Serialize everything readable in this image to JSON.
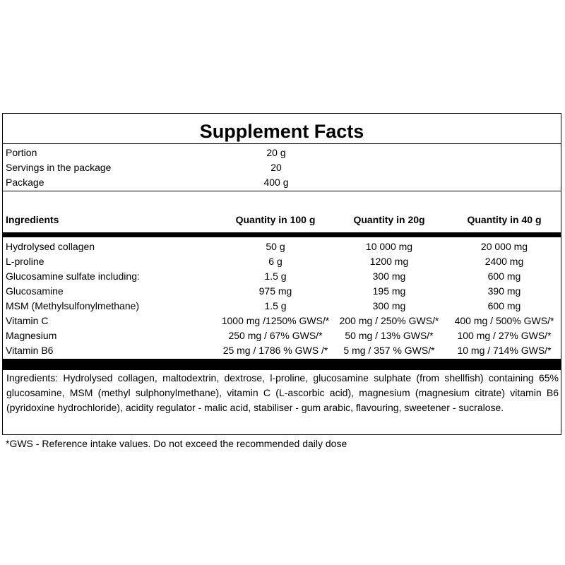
{
  "title": "Supplement Facts",
  "serving_info": [
    {
      "label": "Portion",
      "value": "20 g"
    },
    {
      "label": "Servings in the package",
      "value": "20"
    },
    {
      "label": "Package",
      "value": "400 g"
    }
  ],
  "table": {
    "headers": [
      "Ingredients",
      "Quantity in 100 g",
      "Quantity in 20g",
      "Quantity in 40 g"
    ],
    "rows": [
      [
        "Hydrolysed collagen",
        "50 g",
        "10 000 mg",
        "20 000 mg"
      ],
      [
        "L-proline",
        "6 g",
        "1200 mg",
        "2400 mg"
      ],
      [
        "Glucosamine sulfate including:",
        "1.5 g",
        "300 mg",
        "600 mg"
      ],
      [
        "Glucosamine",
        "975 mg",
        "195 mg",
        "390 mg"
      ],
      [
        "MSM (Methylsulfonylmethane)",
        "1.5 g",
        "300 mg",
        "600 mg"
      ],
      [
        "Vitamin C",
        "1000 mg /1250% GWS/*",
        "200 mg / 250% GWS/*",
        "400 mg / 500% GWS/*"
      ],
      [
        "Magnesium",
        "250 mg / 67% GWS/*",
        "50 mg / 13% GWS/*",
        "100 mg / 27% GWS/*"
      ],
      [
        "Vitamin B6",
        "25 mg / 1786 % GWS /*",
        "5 mg / 357 % GWS/*",
        "10 mg / 714% GWS/*"
      ]
    ]
  },
  "ingredients_text": "Ingredients: Hydrolysed collagen, maltodextrin, dextrose, l-proline, glucosamine sulphate (from shellfish) containing 65% glucosamine, MSM (methyl sulphonylmethane), vitamin C (L-ascorbic acid), magnesium (magnesium citrate) vitamin B6 (pyridoxine hydrochloride), acidity regulator - malic acid, stabiliser - gum arabic, flavouring, sweetener - sucralose.",
  "footnote": "*GWS - Reference intake values. Do not exceed the recommended daily dose"
}
